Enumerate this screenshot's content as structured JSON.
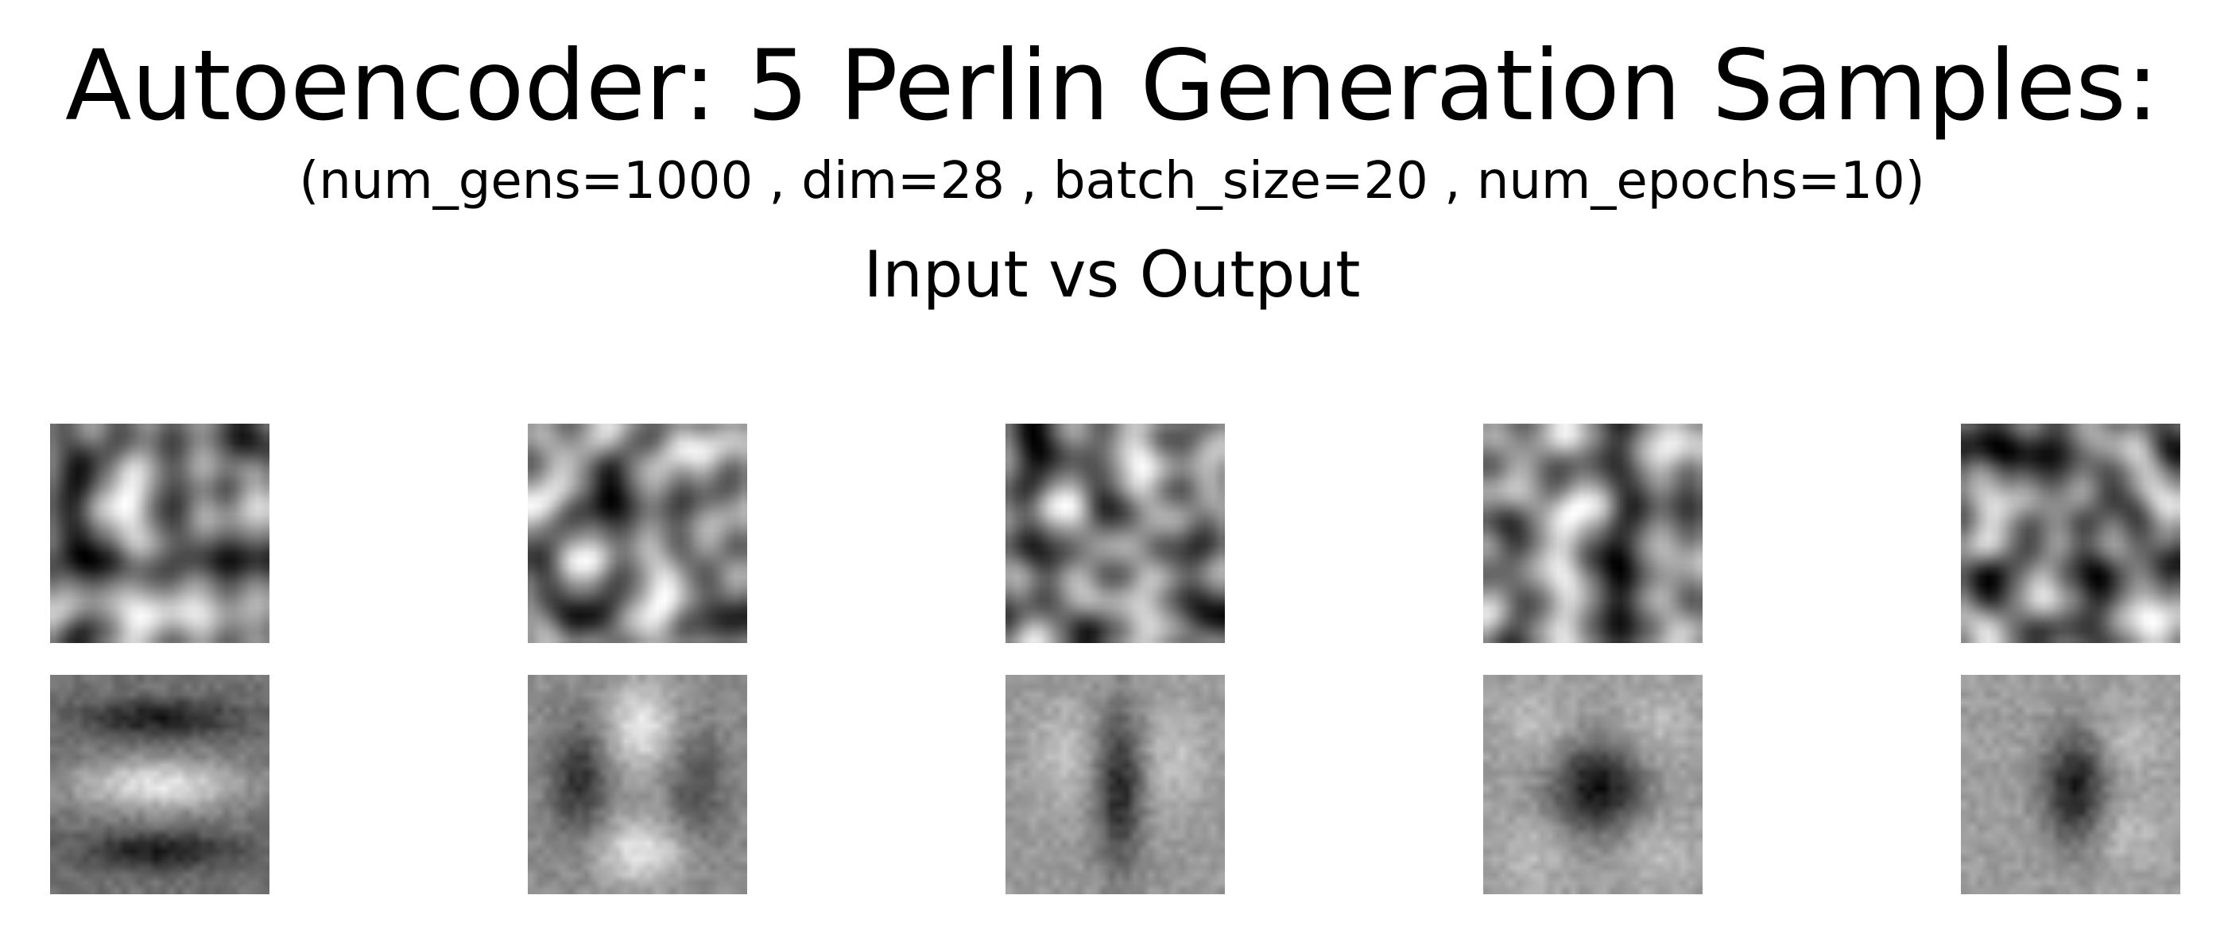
{
  "figure": {
    "title": "Autoencoder: 5 Perlin Generation Samples:",
    "subtitle": "(num_gens=1000 , dim=28 , batch_size=20 , num_epochs=10)",
    "section_label": "Input vs Output",
    "sample_count": 5,
    "colormap": "grayscale"
  }
}
